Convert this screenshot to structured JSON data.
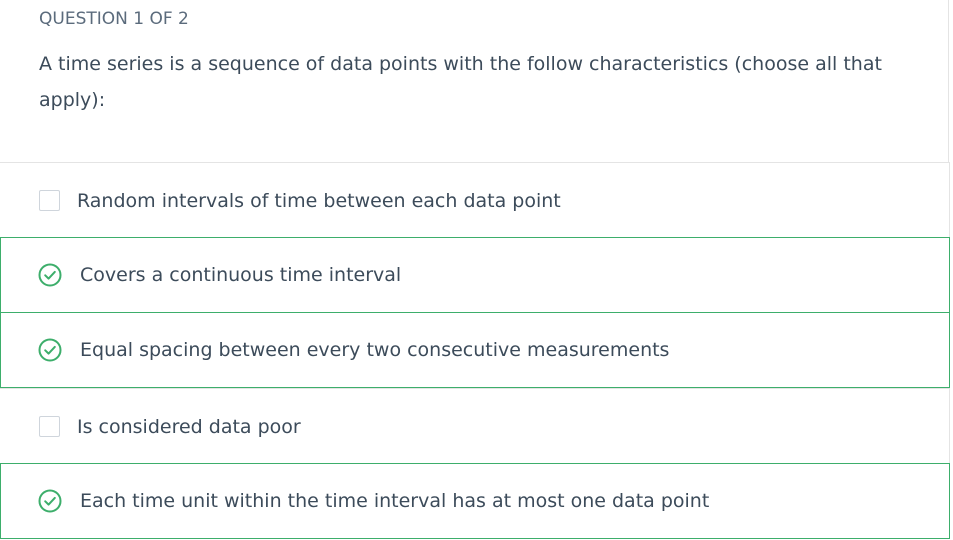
{
  "question": {
    "counter": "QUESTION 1 OF 2",
    "text": "A time series is a sequence of data points with the follow characteristics (choose all that apply):"
  },
  "options": [
    {
      "label": "Random intervals of time between each data point",
      "selected": false
    },
    {
      "label": "Covers a continuous time interval",
      "selected": true
    },
    {
      "label": "Equal spacing between every two consecutive measurements",
      "selected": true
    },
    {
      "label": "Is considered data poor",
      "selected": false
    },
    {
      "label": "Each time unit within the time interval has at most one data point",
      "selected": true
    }
  ],
  "colors": {
    "selected_accent": "#3dae6b",
    "text": "#3c4b5a",
    "counter_text": "#5b6b7c",
    "divider": "#e4e4e4"
  },
  "icons": {
    "selected": "check-circle-icon",
    "unselected": "checkbox"
  }
}
